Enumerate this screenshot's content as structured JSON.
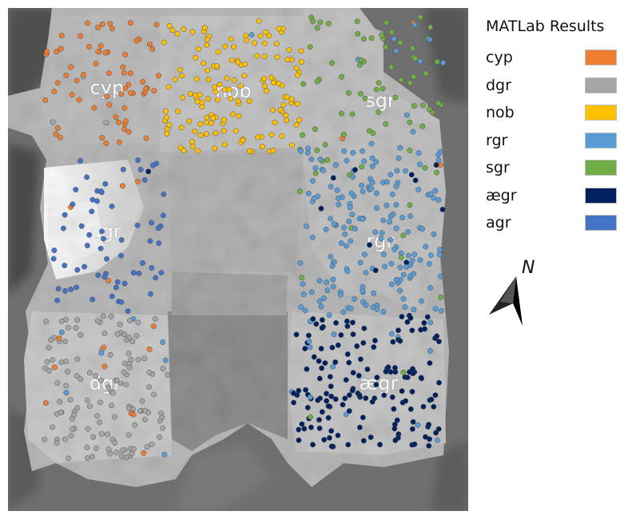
{
  "legend": {
    "title": "MATLab Results",
    "items": [
      {
        "label": "cyp",
        "color": "#ed7d31"
      },
      {
        "label": "dgr",
        "color": "#a5a5a5"
      },
      {
        "label": "nob",
        "color": "#ffc000"
      },
      {
        "label": "rgr",
        "color": "#5b9bd5"
      },
      {
        "label": "sgr",
        "color": "#70ad47"
      },
      {
        "label": "ægr",
        "color": "#002060"
      },
      {
        "label": "agr",
        "color": "#4472c4"
      }
    ]
  },
  "map": {
    "region_labels": {
      "cyp": "cyp",
      "nob": "nob",
      "sgr": "sgr",
      "agr": "agr",
      "rgr": "rgr",
      "dgr": "dgr",
      "aegr": "ægr"
    }
  },
  "north_arrow": {
    "label": "N"
  }
}
